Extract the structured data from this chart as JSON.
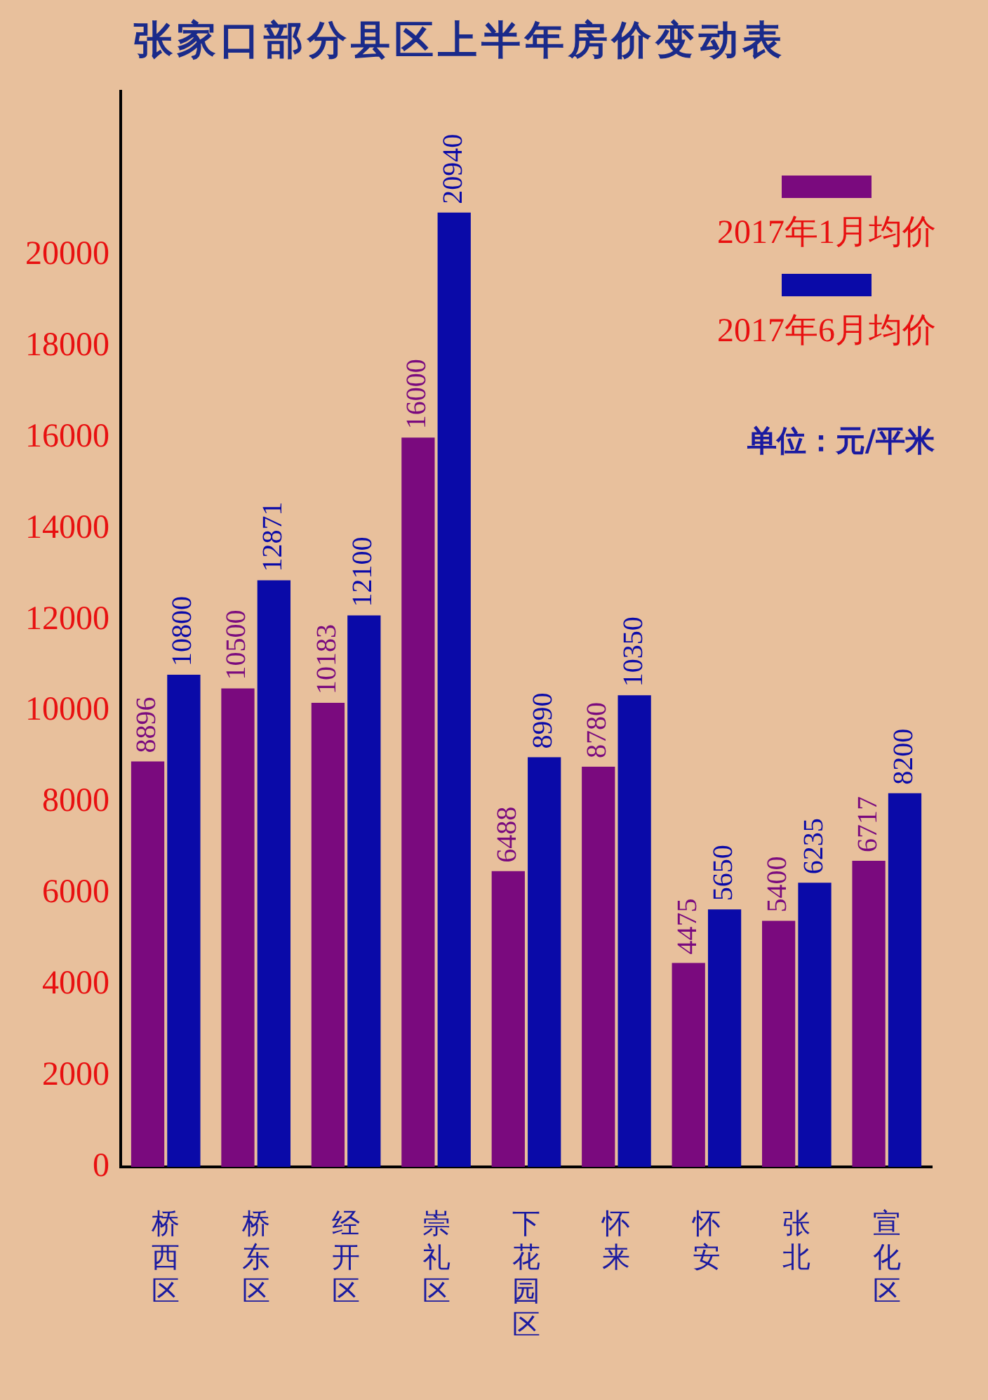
{
  "chart_data": {
    "type": "bar",
    "title": "张家口部分县区上半年房价变动表",
    "categories": [
      "桥西区",
      "桥东区",
      "经开区",
      "崇礼区",
      "下花园区",
      "怀来",
      "怀安",
      "张北",
      "宣化区"
    ],
    "series": [
      {
        "name": "2017年1月均价",
        "color": "#7a0a7e",
        "values": [
          8896,
          10500,
          10183,
          16000,
          6488,
          8780,
          4475,
          5400,
          6717
        ]
      },
      {
        "name": "2017年6月均价",
        "color": "#0a0aa8",
        "values": [
          10800,
          12871,
          12100,
          20940,
          8990,
          10350,
          5650,
          6235,
          8200
        ]
      }
    ],
    "ylim": [
      0,
      23600
    ],
    "yticks": [
      0,
      2000,
      4000,
      6000,
      8000,
      10000,
      12000,
      14000,
      16000,
      18000,
      20000
    ],
    "grid": false,
    "legend": "top right",
    "data_labels": true,
    "annotations": [
      "单位：元/平米"
    ]
  }
}
